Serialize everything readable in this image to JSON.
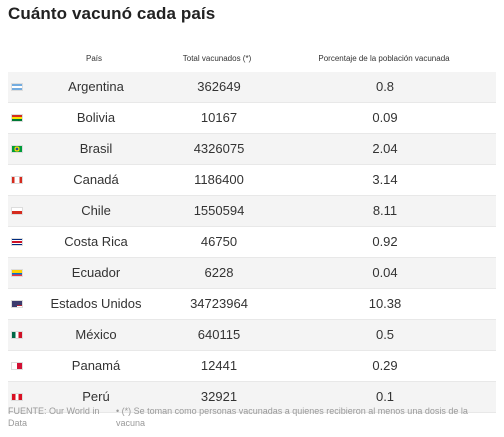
{
  "title": "Cuánto vacunó cada país",
  "columns": {
    "country": "País",
    "total": "Total vacunados (*)",
    "percent": "Porcentaje de la población vacunada"
  },
  "rows": [
    {
      "country": "Argentina",
      "total": "362649",
      "percent": "0.8",
      "flag": "argentina-flag"
    },
    {
      "country": "Bolivia",
      "total": "10167",
      "percent": "0.09",
      "flag": "bolivia-flag"
    },
    {
      "country": "Brasil",
      "total": "4326075",
      "percent": "2.04",
      "flag": "brazil-flag"
    },
    {
      "country": "Canadá",
      "total": "1186400",
      "percent": "3.14",
      "flag": "canada-flag"
    },
    {
      "country": "Chile",
      "total": "1550594",
      "percent": "8.11",
      "flag": "chile-flag"
    },
    {
      "country": "Costa Rica",
      "total": "46750",
      "percent": "0.92",
      "flag": "costa-rica-flag"
    },
    {
      "country": "Ecuador",
      "total": "6228",
      "percent": "0.04",
      "flag": "ecuador-flag"
    },
    {
      "country": "Estados Unidos",
      "total": "34723964",
      "percent": "10.38",
      "flag": "usa-flag"
    },
    {
      "country": "México",
      "total": "640115",
      "percent": "0.5",
      "flag": "mexico-flag"
    },
    {
      "country": "Panamá",
      "total": "12441",
      "percent": "0.29",
      "flag": "panama-flag"
    },
    {
      "country": "Perú",
      "total": "32921",
      "percent": "0.1",
      "flag": "peru-flag"
    }
  ],
  "footer": {
    "source": "FUENTE: Our World in Data",
    "note": "• (*) Se toman como personas vacunadas a quienes recibieron al menos una dosis de la vacuna"
  }
}
